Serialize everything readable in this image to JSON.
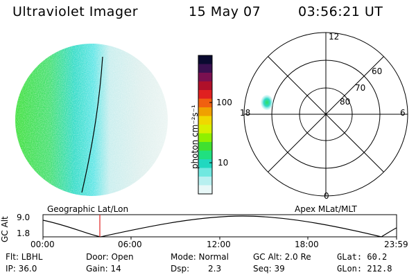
{
  "header": {
    "instrument": "Ultraviolet Imager",
    "date": "15 May 07",
    "time": "03:56:21 UT"
  },
  "colorbar": {
    "unit_label": "photon cm⁻²s⁻¹",
    "ticks": [
      "100",
      "10"
    ],
    "colors": [
      "#0a0a30",
      "#3a1050",
      "#7a1050",
      "#b0102a",
      "#e02020",
      "#f06010",
      "#f0a000",
      "#f0d800",
      "#d8f000",
      "#90f000",
      "#40e030",
      "#20e080",
      "#20d8c0",
      "#70e8e0",
      "#b8f0f0",
      "#e8f8f8"
    ]
  },
  "polar_plot": {
    "mlt_labels": [
      "12",
      "18",
      "6",
      "0"
    ],
    "lat_labels": [
      "60",
      "70",
      "80"
    ]
  },
  "timeline": {
    "axis_title": "GC Alt",
    "y_ticks": [
      "9.0",
      "1.8"
    ],
    "left_label": "Geographic Lat/Lon",
    "right_label": "Apex MLat/MLT",
    "x_ticks": [
      "00:00",
      "06:00",
      "12:00",
      "18:00",
      "23:59"
    ],
    "marker_color": "#e02020"
  },
  "footer": {
    "filter": "Flt: LBHL",
    "ip": "IP: 36.0",
    "door": "Door: Open",
    "gain": "Gain: 14",
    "mode": "Mode: Normal",
    "dsp_label": "Dsp:",
    "dsp_value": "2.3",
    "gc_alt": "GC Alt: 2.0 Re",
    "seq": "Seq: 39",
    "glat": "GLat:  60.2",
    "glon": "GLon: 212.8"
  }
}
